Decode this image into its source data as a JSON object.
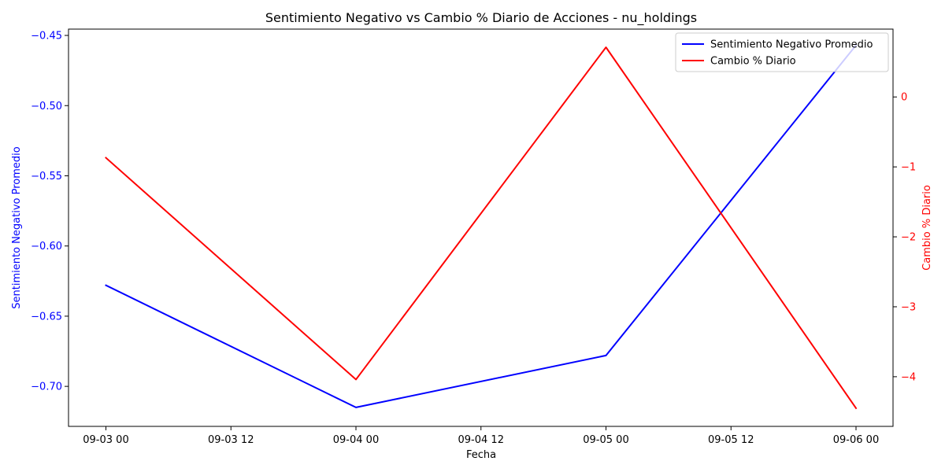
{
  "chart_data": {
    "type": "line",
    "title": "Sentimiento Negativo vs Cambio % Diario de Acciones - nu_holdings",
    "xlabel": "Fecha",
    "x": [
      "2024-09-03T00:00",
      "2024-09-04T00:00",
      "2024-09-05T00:00",
      "2024-09-06T00:00"
    ],
    "x_ticks": [
      "09-03 00",
      "09-03 12",
      "09-04 00",
      "09-04 12",
      "09-05 00",
      "09-05 12",
      "09-06 00"
    ],
    "series": [
      {
        "name": "Sentimiento Negativo Promedio",
        "axis": "left",
        "color": "#0000ff",
        "values": [
          -0.628,
          -0.715,
          -0.678,
          -0.457
        ]
      },
      {
        "name": "Cambio % Diario",
        "axis": "right",
        "color": "#ff0000",
        "values": [
          -0.87,
          -4.04,
          0.71,
          -4.45
        ]
      }
    ],
    "y_left": {
      "label": "Sentimiento Negativo Promedio",
      "color": "#0000ff",
      "lim": [
        -0.7285,
        -0.4455
      ],
      "ticks": [
        -0.45,
        -0.5,
        -0.55,
        -0.6,
        -0.65,
        -0.7
      ],
      "tick_labels": [
        "−0.45",
        "−0.50",
        "−0.55",
        "−0.60",
        "−0.65",
        "−0.70"
      ]
    },
    "y_right": {
      "label": "Cambio % Diario",
      "color": "#ff0000",
      "lim": [
        -4.71,
        0.97
      ],
      "ticks": [
        0,
        -1,
        -2,
        -3,
        -4
      ],
      "tick_labels": [
        "0",
        "−1",
        "−2",
        "−3",
        "−4"
      ]
    },
    "grid": false,
    "legend": "top-right"
  }
}
